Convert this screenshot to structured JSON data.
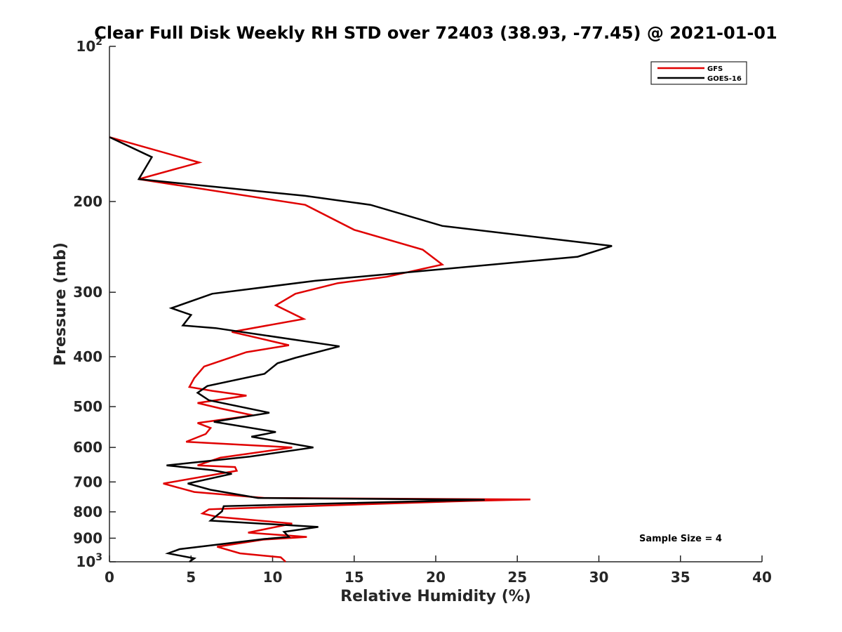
{
  "chart_data": {
    "type": "line",
    "title": "Clear Full Disk Weekly RH STD over 72403 (38.93, -77.45) @ 2021-01-01",
    "xlabel": "Relative Humidity (%)",
    "ylabel": "Pressure (mb)",
    "xlim": [
      0,
      40
    ],
    "ylim": [
      100,
      1000
    ],
    "y_scale": "log",
    "y_reversed": true,
    "grid": false,
    "legend_position": "top-right",
    "x_ticks": [
      "0",
      "5",
      "10",
      "15",
      "20",
      "25",
      "30",
      "35",
      "40"
    ],
    "x_tick_values": [
      0,
      5,
      10,
      15,
      20,
      25,
      30,
      35,
      40
    ],
    "y_ticks": [
      {
        "value": 100,
        "base": "10",
        "exp": "2"
      },
      {
        "value": 200,
        "base": "200",
        "exp": ""
      },
      {
        "value": 300,
        "base": "300",
        "exp": ""
      },
      {
        "value": 400,
        "base": "400",
        "exp": ""
      },
      {
        "value": 500,
        "base": "500",
        "exp": ""
      },
      {
        "value": 600,
        "base": "600",
        "exp": ""
      },
      {
        "value": 700,
        "base": "700",
        "exp": ""
      },
      {
        "value": 800,
        "base": "800",
        "exp": ""
      },
      {
        "value": 900,
        "base": "900",
        "exp": ""
      },
      {
        "value": 1000,
        "base": "10",
        "exp": "3"
      }
    ],
    "annotation": "Sample Size = 4",
    "series": [
      {
        "name": "GFS",
        "color": "#e00000",
        "points": [
          [
            0,
            150
          ],
          [
            5.5,
            168
          ],
          [
            1.8,
            181
          ],
          [
            12,
            203
          ],
          [
            15,
            227
          ],
          [
            19.2,
            248
          ],
          [
            20.4,
            265
          ],
          [
            17,
            280
          ],
          [
            14,
            288
          ],
          [
            11.4,
            302
          ],
          [
            10.2,
            318
          ],
          [
            11.9,
            338
          ],
          [
            7.5,
            358
          ],
          [
            11,
            380
          ],
          [
            8.4,
            392
          ],
          [
            5.8,
            418
          ],
          [
            5.2,
            440
          ],
          [
            4.9,
            458
          ],
          [
            6.3,
            466
          ],
          [
            8.4,
            476
          ],
          [
            5.4,
            492
          ],
          [
            6.8,
            504
          ],
          [
            8.8,
            520
          ],
          [
            5.4,
            538
          ],
          [
            6.2,
            550
          ],
          [
            5.9,
            565
          ],
          [
            4.7,
            585
          ],
          [
            11.2,
            600
          ],
          [
            6.8,
            628
          ],
          [
            5.4,
            650
          ],
          [
            7.7,
            655
          ],
          [
            7.8,
            666
          ],
          [
            3.3,
            705
          ],
          [
            5.2,
            732
          ],
          [
            9.5,
            752
          ],
          [
            25.8,
            757
          ],
          [
            22,
            762
          ],
          [
            7,
            789
          ],
          [
            6.1,
            791
          ],
          [
            5.7,
            806
          ],
          [
            6.6,
            818
          ],
          [
            11.2,
            843
          ],
          [
            8.5,
            878
          ],
          [
            12.1,
            895
          ],
          [
            9.4,
            906
          ],
          [
            6.6,
            935
          ],
          [
            8,
            963
          ],
          [
            10.5,
            980
          ],
          [
            10.8,
            1000
          ]
        ]
      },
      {
        "name": "GOES-16",
        "color": "#000000",
        "points": [
          [
            0,
            150
          ],
          [
            2.6,
            164
          ],
          [
            1.8,
            181
          ],
          [
            12,
            195
          ],
          [
            16,
            203
          ],
          [
            20.4,
            223
          ],
          [
            30.8,
            244
          ],
          [
            28.7,
            256
          ],
          [
            12.6,
            285
          ],
          [
            6.3,
            302
          ],
          [
            3.8,
            322
          ],
          [
            5,
            332
          ],
          [
            4.5,
            348
          ],
          [
            6.5,
            352
          ],
          [
            14.1,
            382
          ],
          [
            11.4,
            402
          ],
          [
            10.3,
            412
          ],
          [
            9.5,
            432
          ],
          [
            6,
            456
          ],
          [
            5.4,
            470
          ],
          [
            6.1,
            486
          ],
          [
            9.8,
            514
          ],
          [
            6.4,
            535
          ],
          [
            10.2,
            560
          ],
          [
            8.7,
            572
          ],
          [
            12.5,
            600
          ],
          [
            8.6,
            625
          ],
          [
            3.5,
            650
          ],
          [
            6.3,
            664
          ],
          [
            7.5,
            675
          ],
          [
            4.8,
            705
          ],
          [
            6.2,
            725
          ],
          [
            9.1,
            752
          ],
          [
            23,
            758
          ],
          [
            20,
            762
          ],
          [
            7,
            780
          ],
          [
            6.9,
            798
          ],
          [
            6.2,
            832
          ],
          [
            12.8,
            856
          ],
          [
            10.7,
            875
          ],
          [
            11,
            895
          ],
          [
            9.5,
            903
          ],
          [
            4.3,
            945
          ],
          [
            3.6,
            963
          ],
          [
            5.2,
            985
          ],
          [
            4.9,
            1000
          ]
        ]
      }
    ]
  }
}
